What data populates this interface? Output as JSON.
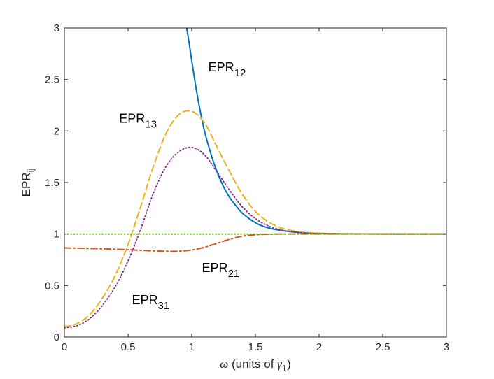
{
  "chart_data": {
    "type": "line",
    "title": "",
    "xlabel": "ω (units of γ1)",
    "xlabel_parts": {
      "symbol": "ω",
      "text": "(units of",
      "gamma": "γ",
      "gamma_sub": "1",
      "close": ")"
    },
    "ylabel": "EPRij",
    "ylabel_parts": {
      "base": "EPR",
      "sub": "ij"
    },
    "xlim": [
      0,
      3
    ],
    "ylim": [
      0,
      3
    ],
    "xticks": [
      0,
      0.5,
      1,
      1.5,
      2,
      2.5,
      3
    ],
    "xtick_labels": [
      "0",
      "0.5",
      "1",
      "1.5",
      "2",
      "2.5",
      "3"
    ],
    "yticks": [
      0,
      0.5,
      1,
      1.5,
      2,
      2.5,
      3
    ],
    "ytick_labels": [
      "0",
      "0.5",
      "1",
      "1.5",
      "2",
      "2.5",
      "3"
    ],
    "grid": false,
    "x": [
      0,
      0.1,
      0.2,
      0.3,
      0.4,
      0.5,
      0.6,
      0.7,
      0.8,
      0.9,
      1.0,
      1.1,
      1.2,
      1.3,
      1.4,
      1.5,
      1.6,
      1.7,
      1.8,
      1.9,
      2.0,
      2.2,
      2.4,
      2.6,
      2.8,
      3.0
    ],
    "series": [
      {
        "id": "epr12",
        "color": "#0072BD",
        "style": "solid",
        "x": [
          0.96,
          0.98,
          1.0,
          1.05,
          1.1,
          1.15,
          1.2,
          1.25,
          1.3,
          1.35,
          1.4,
          1.5,
          1.6,
          1.7,
          1.8,
          1.9,
          2.0,
          2.2,
          2.4,
          2.6,
          2.8,
          3.0
        ],
        "values": [
          3.0,
          2.85,
          2.68,
          2.3,
          2.0,
          1.78,
          1.6,
          1.46,
          1.35,
          1.27,
          1.2,
          1.11,
          1.06,
          1.035,
          1.02,
          1.01,
          1.005,
          1.002,
          1.001,
          1.0,
          1.0,
          1.0
        ]
      },
      {
        "id": "epr13",
        "color": "#EDB120",
        "style": "dashed",
        "x": [
          0,
          0.1,
          0.2,
          0.3,
          0.4,
          0.5,
          0.6,
          0.7,
          0.8,
          0.9,
          1.0,
          1.1,
          1.2,
          1.3,
          1.4,
          1.5,
          1.6,
          1.7,
          1.8,
          1.9,
          2.0,
          2.2,
          2.4,
          2.6,
          2.8,
          3.0
        ],
        "values": [
          0.1,
          0.13,
          0.22,
          0.38,
          0.6,
          0.9,
          1.27,
          1.66,
          1.98,
          2.16,
          2.19,
          2.08,
          1.84,
          1.6,
          1.38,
          1.22,
          1.12,
          1.06,
          1.03,
          1.015,
          1.008,
          1.003,
          1.001,
          1.0,
          1.0,
          1.0
        ]
      },
      {
        "id": "epr31",
        "color": "#7E2F8E",
        "style": "dotted",
        "x": [
          0,
          0.1,
          0.2,
          0.3,
          0.4,
          0.5,
          0.6,
          0.7,
          0.8,
          0.9,
          1.0,
          1.1,
          1.2,
          1.3,
          1.4,
          1.5,
          1.6,
          1.7,
          1.8,
          1.9,
          2.0,
          2.2,
          2.4,
          2.6,
          2.8,
          3.0
        ],
        "values": [
          0.09,
          0.11,
          0.18,
          0.31,
          0.49,
          0.74,
          1.05,
          1.4,
          1.66,
          1.8,
          1.84,
          1.77,
          1.6,
          1.42,
          1.26,
          1.15,
          1.08,
          1.04,
          1.02,
          1.01,
          1.005,
          1.002,
          1.001,
          1.0,
          1.0,
          1.0
        ]
      },
      {
        "id": "epr21",
        "color": "#D95319",
        "style": "dashdot",
        "x": [
          0,
          0.1,
          0.2,
          0.3,
          0.4,
          0.5,
          0.6,
          0.7,
          0.8,
          0.9,
          1.0,
          1.1,
          1.2,
          1.3,
          1.4,
          1.5,
          1.6,
          1.7,
          1.8,
          1.9,
          2.0,
          2.2,
          2.4,
          2.6,
          2.8,
          3.0
        ],
        "values": [
          0.865,
          0.863,
          0.86,
          0.857,
          0.853,
          0.848,
          0.842,
          0.836,
          0.833,
          0.834,
          0.845,
          0.872,
          0.91,
          0.95,
          0.98,
          0.993,
          0.998,
          1.0,
          1.0,
          1.0,
          1.0,
          1.0,
          1.0,
          1.0,
          1.0,
          1.0
        ]
      },
      {
        "id": "reference",
        "color": "#77AC30",
        "style": "dotted",
        "x": [
          0,
          3
        ],
        "values": [
          1.0,
          1.0
        ]
      }
    ],
    "annotations": [
      {
        "id": "ann-epr12",
        "base": "EPR",
        "sub": "12",
        "x": 1.13,
        "y": 2.58
      },
      {
        "id": "ann-epr13",
        "base": "EPR",
        "sub": "13",
        "x": 0.43,
        "y": 2.08
      },
      {
        "id": "ann-epr21",
        "base": "EPR",
        "sub": "21",
        "x": 1.08,
        "y": 0.63
      },
      {
        "id": "ann-epr31",
        "base": "EPR",
        "sub": "31",
        "x": 0.53,
        "y": 0.32
      }
    ]
  }
}
